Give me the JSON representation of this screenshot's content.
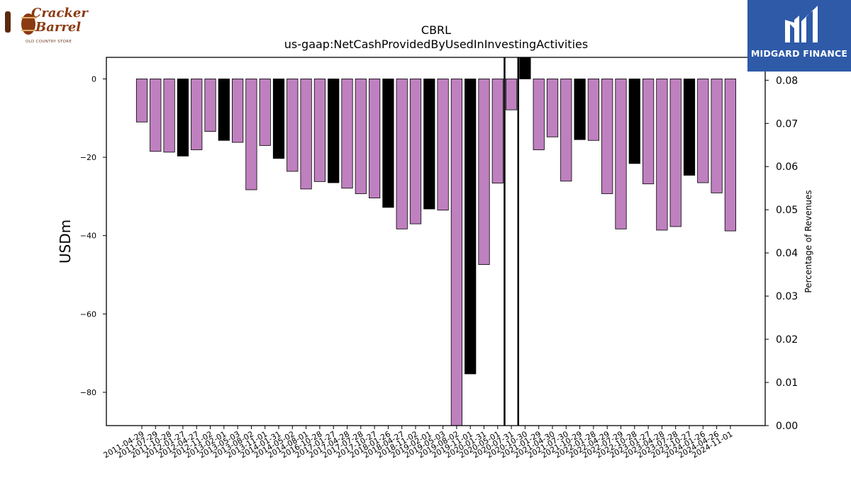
{
  "logos": {
    "left": {
      "name": "Cracker Barrel",
      "line1": "Cracker",
      "line2": "Barrel",
      "tagline": "OLD COUNTRY STORE"
    },
    "right": {
      "name": "MIDGARD FINANCE"
    }
  },
  "chart_data": {
    "type": "bar",
    "title": "CBRL",
    "subtitle": "us-gaap:NetCashProvidedByUsedInInvestingActivities",
    "ylabel": "USDm",
    "y2label": "Percentage of Revenues",
    "ylim": [
      -88.5,
      5.5
    ],
    "yticks": [
      0,
      -20,
      -40,
      -60,
      -80
    ],
    "y2lim": [
      0,
      0.0853
    ],
    "y2ticks": [
      "0.00",
      "0.01",
      "0.02",
      "0.03",
      "0.04",
      "0.05",
      "0.06",
      "0.07",
      "0.08"
    ],
    "categories": [
      "2011-04-29",
      "2011-07-29",
      "2011-10-28",
      "2012-01-27",
      "2012-04-27",
      "2012-11-02",
      "2013-02-01",
      "2013-05-03",
      "2013-08-02",
      "2013-11-01",
      "2014-01-31",
      "2014-05-02",
      "2014-08-01",
      "2016-10-28",
      "2017-01-27",
      "2017-04-28",
      "2017-07-28",
      "2017-10-27",
      "2018-01-26",
      "2018-04-27",
      "2018-11-02",
      "2019-02-01",
      "2019-05-03",
      "2019-08-02",
      "2019-11-01",
      "2020-01-31",
      "2020-05-01",
      "2020-07-31",
      "2020-10-30",
      "2021-01-29",
      "2021-04-30",
      "2021-07-30",
      "2021-10-29",
      "2022-01-28",
      "2022-04-29",
      "2022-07-29",
      "2022-10-28",
      "2023-01-27",
      "2023-04-28",
      "2023-07-28",
      "2023-10-27",
      "2024-01-26",
      "2024-04-26",
      "2024-11-01"
    ],
    "values": [
      -11.0,
      -18.5,
      -18.7,
      -19.7,
      -18.1,
      -13.4,
      -15.7,
      -16.2,
      -28.3,
      -17.0,
      -20.3,
      -23.6,
      -28.1,
      -26.2,
      -26.5,
      -27.9,
      -29.3,
      -30.4,
      -32.8,
      -38.3,
      -37.0,
      -33.2,
      -33.5,
      -88.5,
      -75.3,
      -47.4,
      -26.6,
      -7.9,
      5.5,
      -18.1,
      -14.8,
      -26.1,
      -15.5,
      -15.7,
      -29.3,
      -38.3,
      -21.6,
      -26.8,
      -38.6,
      -37.7,
      -24.6,
      -26.5,
      -29.1,
      -38.8
    ],
    "highlight": [
      3,
      6,
      10,
      14,
      18,
      21,
      24,
      28,
      32,
      36,
      40
    ],
    "vlines_after_index": [
      26,
      27
    ],
    "colors": {
      "bar": "#bf80bf",
      "highlight": "#000000",
      "edge": "#000000"
    },
    "grid": false
  }
}
